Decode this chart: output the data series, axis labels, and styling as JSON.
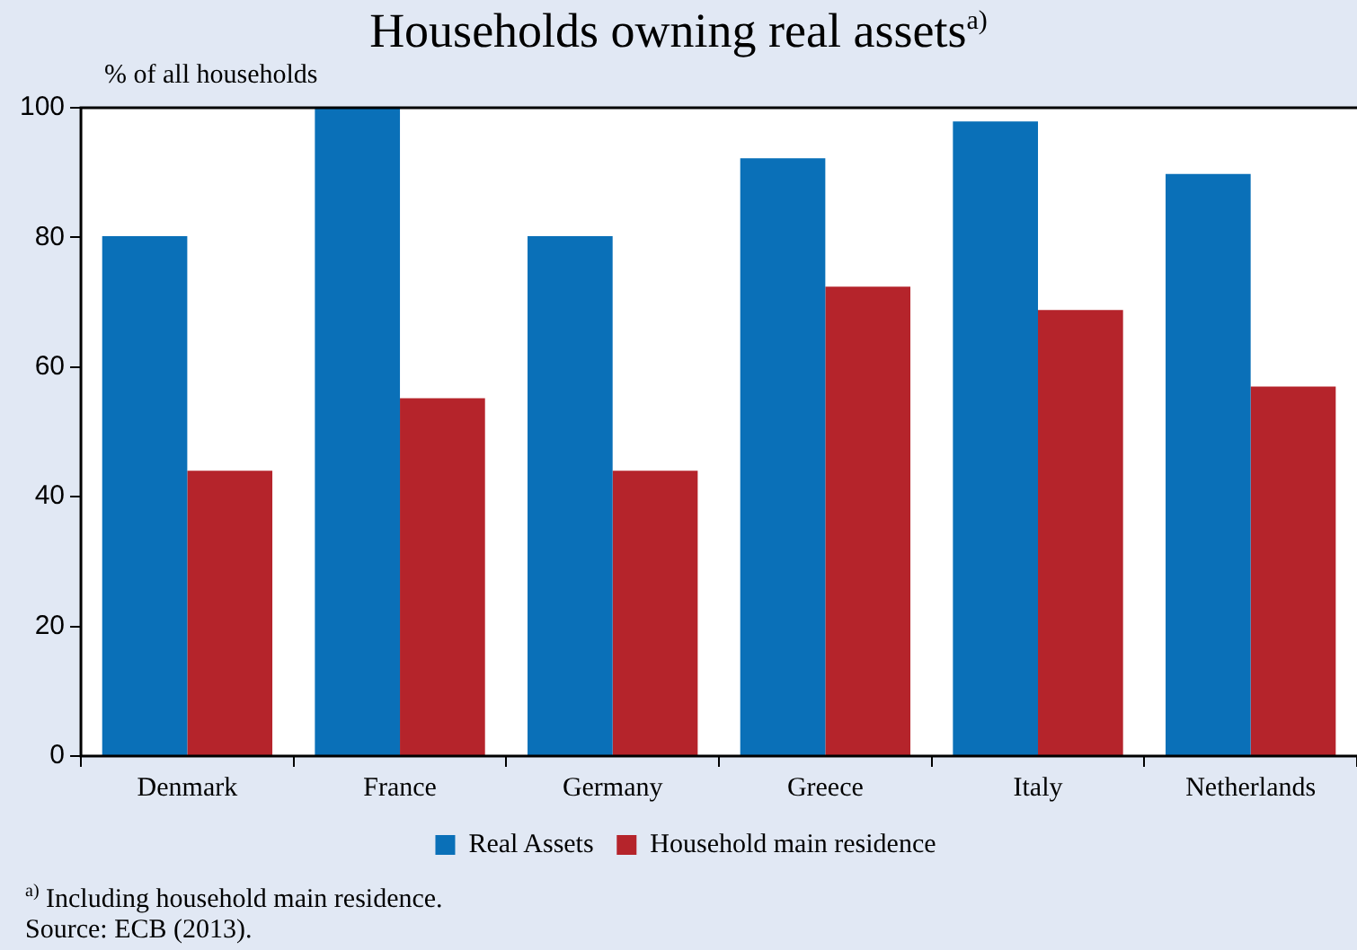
{
  "chart_data": {
    "type": "bar",
    "title": "Households owning real assets$^{a)}$",
    "ylabel": "% of all households",
    "categories": [
      "Denmark",
      "France",
      "Germany",
      "Greece",
      "Italy",
      "Netherlands"
    ],
    "series": [
      {
        "name": "Real Assets",
        "color": "#0a70b8",
        "values": [
          80.2,
          100,
          80.2,
          92.2,
          97.9,
          89.8
        ]
      },
      {
        "name": "Household main residence",
        "color": "#b5242b",
        "values": [
          44.0,
          55.2,
          44.0,
          72.4,
          68.8,
          57.0
        ]
      }
    ],
    "ylim": [
      0,
      100
    ],
    "yticks": [
      0,
      20,
      40,
      60,
      80,
      100
    ],
    "legend": "bottom",
    "annotations": [
      "$^{a)}$ Including household main residence.",
      "Source: ECB (2013)."
    ]
  }
}
